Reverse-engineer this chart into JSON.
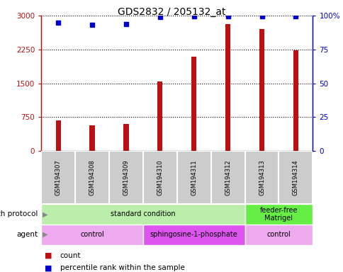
{
  "title": "GDS2832 / 205132_at",
  "samples": [
    "GSM194307",
    "GSM194308",
    "GSM194309",
    "GSM194310",
    "GSM194311",
    "GSM194312",
    "GSM194313",
    "GSM194314"
  ],
  "counts": [
    680,
    560,
    600,
    1540,
    2100,
    2820,
    2700,
    2230
  ],
  "percentile_ranks": [
    95,
    93.5,
    94,
    99,
    99.5,
    99.8,
    99.5,
    99.5
  ],
  "bar_color": "#bb1111",
  "dot_color": "#0000cc",
  "ylim_left": [
    0,
    3000
  ],
  "ylim_right": [
    0,
    100
  ],
  "yticks_left": [
    0,
    750,
    1500,
    2250,
    3000
  ],
  "ytick_labels_left": [
    "0",
    "750",
    "1500",
    "2250",
    "3000"
  ],
  "yticks_right": [
    0,
    25,
    50,
    75,
    100
  ],
  "ytick_labels_right": [
    "0",
    "25",
    "50",
    "75",
    "100%"
  ],
  "growth_protocol_groups": [
    {
      "label": "standard condition",
      "start": 0,
      "end": 6,
      "color": "#bbeeaa"
    },
    {
      "label": "feeder-free\nMatrigel",
      "start": 6,
      "end": 8,
      "color": "#66ee44"
    }
  ],
  "agent_groups": [
    {
      "label": "control",
      "start": 0,
      "end": 3,
      "color": "#eeaaee"
    },
    {
      "label": "sphingosine-1-phosphate",
      "start": 3,
      "end": 6,
      "color": "#dd55ee"
    },
    {
      "label": "control",
      "start": 6,
      "end": 8,
      "color": "#eeaaee"
    }
  ],
  "legend_count_label": "count",
  "legend_pct_label": "percentile rank within the sample",
  "growth_protocol_label": "growth protocol",
  "agent_label": "agent"
}
